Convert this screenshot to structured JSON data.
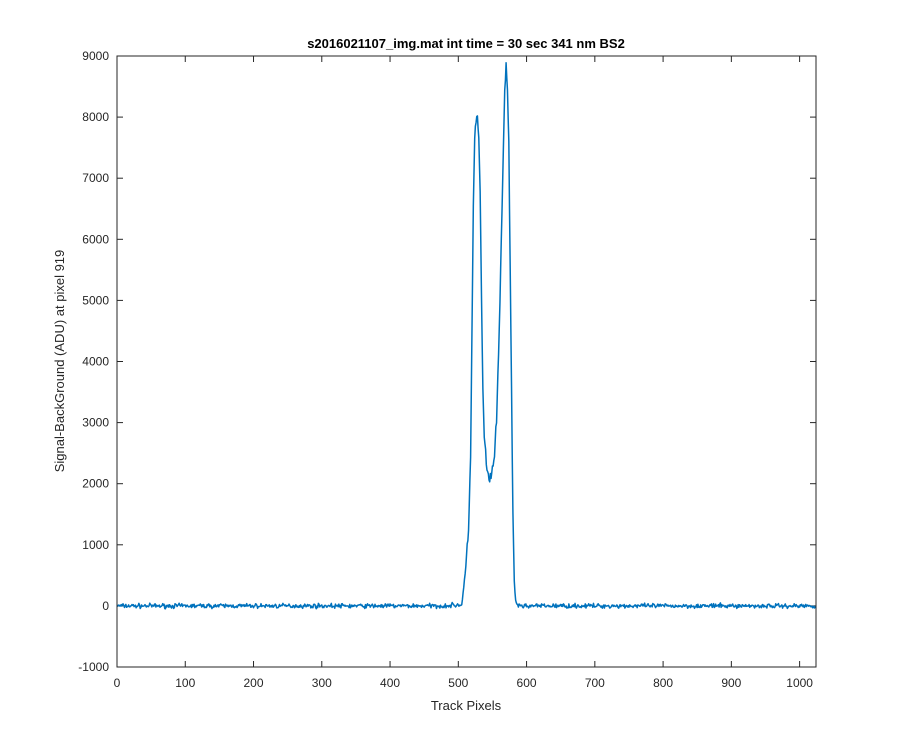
{
  "chart_data": {
    "type": "line",
    "title": "s2016021107_img.mat int time = 30 sec  341 nm BS2",
    "xlabel": "Track Pixels",
    "ylabel": "Signal-BackGround (ADU) at pixel 919",
    "xlim": [
      0,
      1024
    ],
    "ylim": [
      -1000,
      9000
    ],
    "xticks": [
      0,
      100,
      200,
      300,
      400,
      500,
      600,
      700,
      800,
      900,
      1000
    ],
    "yticks": [
      -1000,
      0,
      1000,
      2000,
      3000,
      4000,
      5000,
      6000,
      7000,
      8000,
      9000
    ],
    "grid": false,
    "line_color": "#0072BD",
    "baseline_noise_amplitude": 40,
    "x": [
      0,
      480,
      505,
      510,
      515,
      518,
      520,
      522,
      524,
      526,
      528,
      530,
      532,
      534,
      536,
      538,
      540,
      542,
      545,
      548,
      552,
      556,
      560,
      564,
      566,
      568,
      570,
      572,
      574,
      576,
      578,
      580,
      582,
      584,
      588,
      600,
      1024
    ],
    "y": [
      0,
      0,
      20,
      500,
      1200,
      2500,
      4500,
      6500,
      7700,
      7950,
      8000,
      7600,
      6800,
      5000,
      3500,
      2800,
      2500,
      2200,
      2050,
      2150,
      2300,
      3000,
      4500,
      6500,
      7500,
      8400,
      8800,
      8500,
      7500,
      5500,
      3500,
      1500,
      400,
      80,
      0,
      0,
      0
    ]
  }
}
